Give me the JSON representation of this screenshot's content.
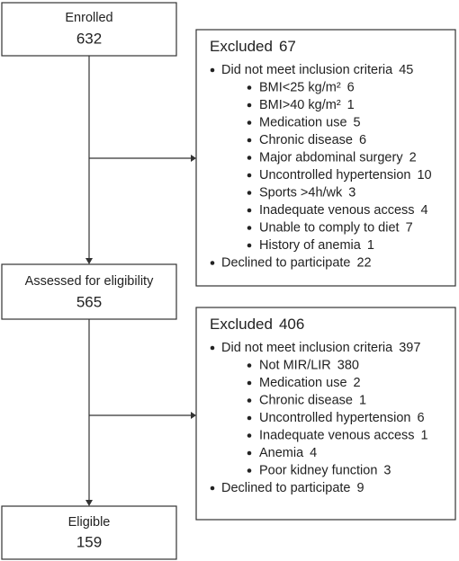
{
  "enrolled": {
    "label": "Enrolled",
    "n": 632
  },
  "excluded_1": {
    "label": "Excluded",
    "n": 67,
    "items": [
      {
        "label": "Did not meet inclusion criteria",
        "n": 45,
        "sub": [
          {
            "label": "BMI<25 kg/m²",
            "n": 6
          },
          {
            "label": "BMI>40 kg/m²",
            "n": 1
          },
          {
            "label": "Medication use",
            "n": 5
          },
          {
            "label": "Chronic disease",
            "n": 6
          },
          {
            "label": "Major abdominal surgery",
            "n": 2
          },
          {
            "label": "Uncontrolled hypertension",
            "n": 10
          },
          {
            "label": "Sports >4h/wk",
            "n": 3
          },
          {
            "label": "Inadequate venous access",
            "n": 4
          },
          {
            "label": "Unable to comply to diet",
            "n": 7
          },
          {
            "label": "History of anemia",
            "n": 1
          }
        ]
      },
      {
        "label": "Declined to participate",
        "n": 22
      }
    ]
  },
  "assessed": {
    "label": "Assessed for eligibility",
    "n": 565
  },
  "excluded_2": {
    "label": "Excluded",
    "n": 406,
    "items": [
      {
        "label": "Did not meet inclusion criteria",
        "n": 397,
        "sub": [
          {
            "label": "Not MIR/LIR",
            "n": 380
          },
          {
            "label": "Medication use",
            "n": 2
          },
          {
            "label": "Chronic disease",
            "n": 1
          },
          {
            "label": "Uncontrolled hypertension",
            "n": 6
          },
          {
            "label": "Inadequate venous access",
            "n": 1
          },
          {
            "label": "Anemia",
            "n": 4
          },
          {
            "label": "Poor kidney function",
            "n": 3
          }
        ]
      },
      {
        "label": "Declined to participate",
        "n": 9
      }
    ]
  },
  "eligible": {
    "label": "Eligible",
    "n": 159
  }
}
